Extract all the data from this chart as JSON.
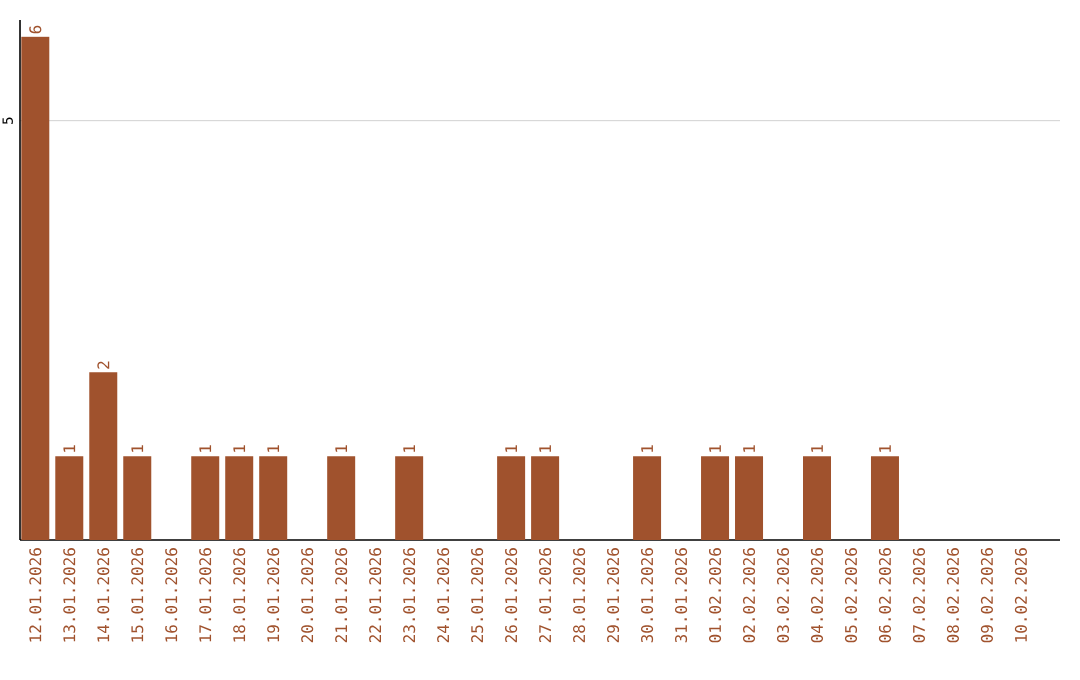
{
  "chart_data": {
    "type": "bar",
    "categories": [
      "12.01.2026",
      "13.01.2026",
      "14.01.2026",
      "15.01.2026",
      "16.01.2026",
      "17.01.2026",
      "18.01.2026",
      "19.01.2026",
      "20.01.2026",
      "21.01.2026",
      "22.01.2026",
      "23.01.2026",
      "24.01.2026",
      "25.01.2026",
      "26.01.2026",
      "27.01.2026",
      "28.01.2026",
      "29.01.2026",
      "30.01.2026",
      "31.01.2026",
      "01.02.2026",
      "02.02.2026",
      "03.02.2026",
      "04.02.2026",
      "05.02.2026",
      "06.02.2026",
      "07.02.2026",
      "08.02.2026",
      "09.02.2026",
      "10.02.2026"
    ],
    "values": [
      6,
      1,
      2,
      1,
      0,
      1,
      1,
      1,
      0,
      1,
      0,
      1,
      0,
      0,
      1,
      1,
      0,
      0,
      1,
      0,
      1,
      1,
      0,
      1,
      0,
      1,
      0,
      0,
      0,
      0
    ],
    "value_labels": [
      "6",
      "1",
      "2",
      "1",
      null,
      "1",
      "1",
      "1",
      null,
      "1",
      null,
      "1",
      null,
      null,
      "1",
      "1",
      null,
      null,
      "1",
      null,
      "1",
      "1",
      null,
      "1",
      null,
      "1",
      null,
      null,
      null,
      null
    ],
    "color": "#a0522d",
    "ylim": [
      0,
      6.2
    ],
    "yticks": [
      5
    ],
    "grid": "y"
  }
}
